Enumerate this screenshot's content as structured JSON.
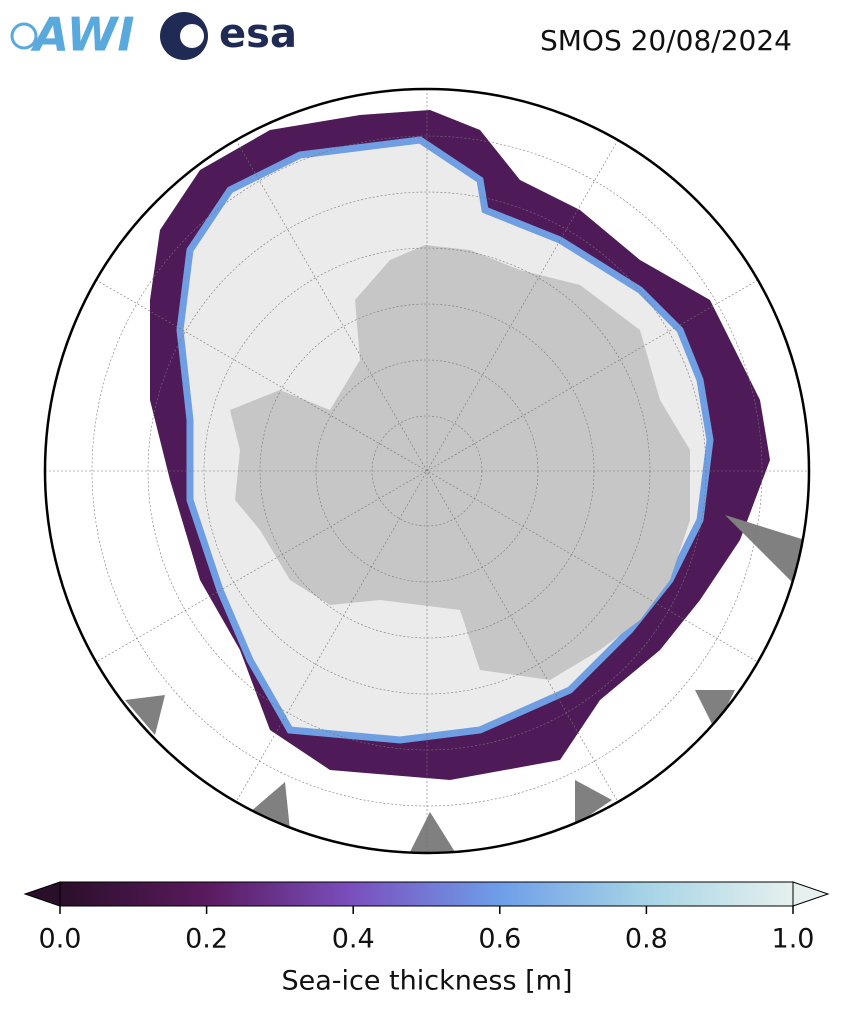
{
  "header": {
    "logos": [
      "AWI",
      "esa"
    ],
    "title": "SMOS 20/08/2024"
  },
  "colorbar": {
    "label": "Sea-ice thickness [m]",
    "lim": [
      0,
      1
    ],
    "ticks": [
      {
        "value": 0,
        "label": "0.0"
      },
      {
        "value": 0.2,
        "label": "0.2"
      },
      {
        "value": 0.4,
        "label": "0.4"
      },
      {
        "value": 0.6,
        "label": "0.6"
      },
      {
        "value": 0.8,
        "label": "0.8"
      },
      {
        "value": 1,
        "label": "1.0"
      }
    ],
    "colors": [
      "#2a0f2a",
      "#5a1a5e",
      "#7a50bf",
      "#6e9ee8",
      "#a6d4e6",
      "#e6f0ee"
    ]
  }
}
